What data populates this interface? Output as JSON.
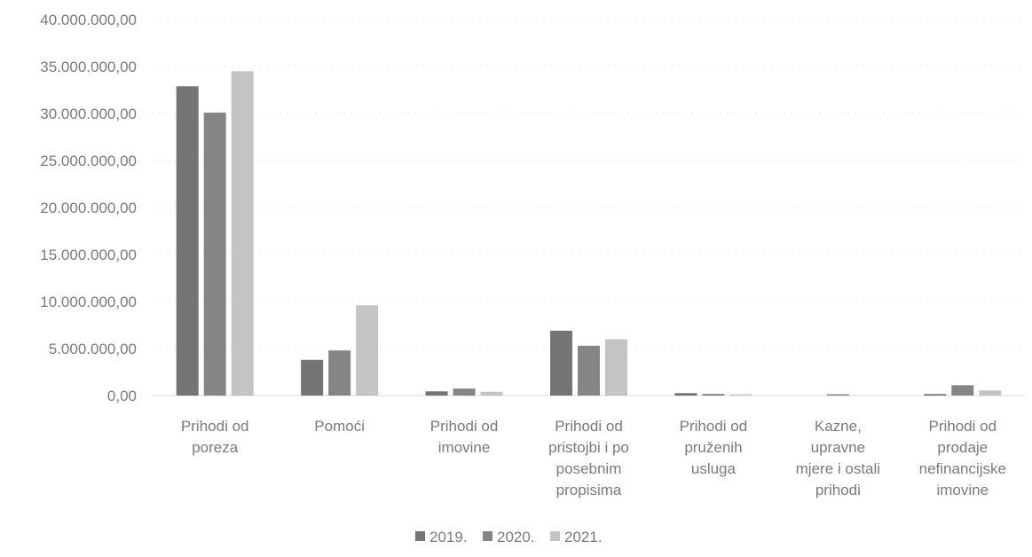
{
  "chart_data": {
    "type": "bar",
    "title": "",
    "xlabel": "",
    "ylabel": "",
    "ylim": [
      0,
      40000000
    ],
    "y_ticks": [
      "0,00",
      "5.000.000,00",
      "10.000.000,00",
      "15.000.000,00",
      "20.000.000,00",
      "25.000.000,00",
      "30.000.000,00",
      "35.000.000,00",
      "40.000.000,00"
    ],
    "grid": true,
    "legend_position": "bottom",
    "categories": [
      [
        "Prihodi od",
        "poreza"
      ],
      [
        "Pomoći"
      ],
      [
        "Prihodi od",
        "imovine"
      ],
      [
        "Prihodi od",
        "pristojbi i po",
        "posebnim",
        "propisima"
      ],
      [
        "Prihodi od",
        "pruženih",
        "usluga"
      ],
      [
        "Kazne,",
        "upravne",
        "mjere i ostali",
        "prihodi"
      ],
      [
        "Prihodi od",
        "prodaje",
        "nefinancijske",
        "imovine"
      ]
    ],
    "series": [
      {
        "name": "2019.",
        "color": "#747474",
        "values": [
          32900000,
          3800000,
          450000,
          6900000,
          260000,
          0,
          160000
        ]
      },
      {
        "name": "2020.",
        "color": "#858585",
        "values": [
          30100000,
          4800000,
          750000,
          5300000,
          180000,
          140000,
          1100000
        ]
      },
      {
        "name": "2021.",
        "color": "#c4c4c4",
        "values": [
          34500000,
          9600000,
          400000,
          6000000,
          140000,
          0,
          550000
        ]
      }
    ]
  }
}
